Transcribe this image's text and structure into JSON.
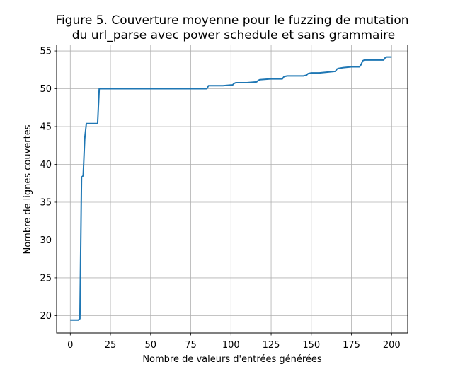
{
  "chart_data": {
    "type": "line",
    "title_lines": [
      "Figure 5. Couverture moyenne pour le fuzzing de mutation",
      "du url_parse avec power schedule et sans grammaire"
    ],
    "xlabel": "Nombre de valeurs d'entrées générées",
    "ylabel": "Nombre de lignes couvertes",
    "xlim": [
      -8.5,
      210
    ],
    "ylim": [
      17.7,
      55.8
    ],
    "xticks": [
      0,
      25,
      50,
      75,
      100,
      125,
      150,
      175,
      200
    ],
    "yticks": [
      20,
      25,
      30,
      35,
      40,
      45,
      50,
      55
    ],
    "grid": true,
    "line_color": "#1f77b4",
    "series": [
      {
        "x": [
          0,
          5,
          6,
          7,
          8,
          9,
          10,
          11,
          17,
          18,
          85,
          86,
          95,
          100,
          101,
          102,
          103,
          110,
          116,
          117,
          118,
          125,
          132,
          133,
          135,
          140,
          145,
          147,
          148,
          150,
          155,
          160,
          165,
          166,
          167,
          170,
          175,
          180,
          181,
          182,
          183,
          190,
          195,
          196,
          197,
          200
        ],
        "y": [
          19.4,
          19.4,
          19.6,
          38.3,
          38.5,
          43.4,
          45.4,
          45.4,
          45.4,
          50.0,
          50.0,
          50.4,
          50.4,
          50.5,
          50.5,
          50.7,
          50.8,
          50.8,
          50.9,
          51.1,
          51.2,
          51.3,
          51.3,
          51.6,
          51.7,
          51.7,
          51.7,
          51.8,
          52.0,
          52.1,
          52.1,
          52.2,
          52.3,
          52.6,
          52.7,
          52.8,
          52.9,
          52.9,
          53.2,
          53.7,
          53.8,
          53.8,
          53.8,
          54.1,
          54.2,
          54.2
        ]
      }
    ]
  }
}
